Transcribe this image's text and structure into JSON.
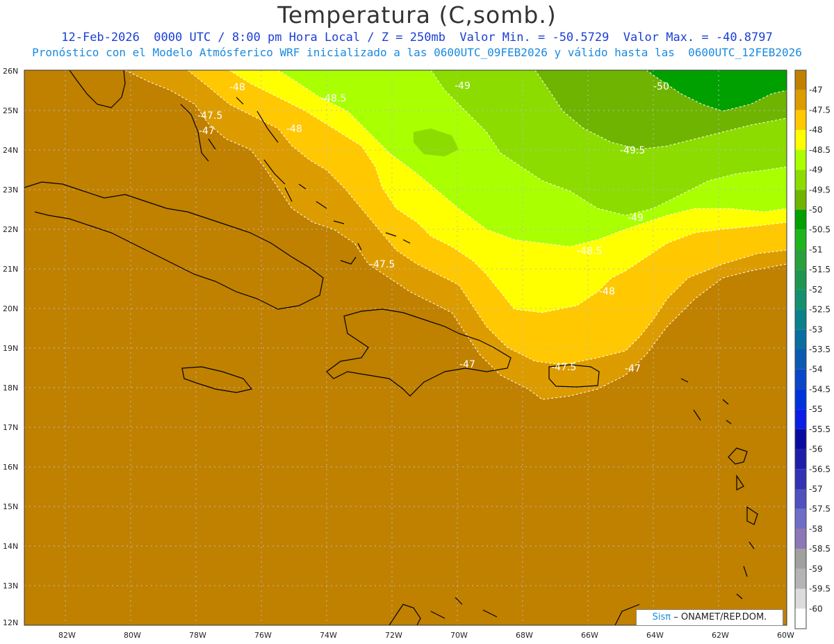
{
  "title": "Temperatura (C,somb.)",
  "subtitle1": "12-Feb-2026  0000 UTC / 8:00 pm Hora Local / Z = 250mb  Valor Min. = -50.5729  Valor Max. = -40.8797",
  "subtitle2": "Pronóstico con el Modelo Atmósferico WRF inicializado a las 0600UTC_09FEB2026 y válido hasta las  0600UTC_12FEB2026",
  "credit": {
    "brand": "Sisπ",
    "text": "– ONAMET/REP.DOM."
  },
  "axes": {
    "lon_labels": [
      "82W",
      "80W",
      "78W",
      "76W",
      "74W",
      "72W",
      "70W",
      "68W",
      "66W",
      "64W",
      "62W",
      "60W"
    ],
    "lat_labels": [
      "26N",
      "25N",
      "24N",
      "23N",
      "22N",
      "21N",
      "20N",
      "19N",
      "18N",
      "17N",
      "16N",
      "15N",
      "14N",
      "13N",
      "12N"
    ]
  },
  "colorbar": {
    "labels": [
      "-47",
      "-47.5",
      "-48",
      "-48.5",
      "-49",
      "-49.5",
      "-50",
      "-50.5",
      "-51",
      "-51.5",
      "-52",
      "-52.5",
      "-53",
      "-53.5",
      "-54",
      "-54.5",
      "-55",
      "-55.5",
      "-56",
      "-56.5",
      "-57",
      "-57.5",
      "-58",
      "-58.5",
      "-59",
      "-59.5",
      "-60"
    ],
    "colors": [
      "#c08000",
      "#dc9c00",
      "#ffc800",
      "#ffff00",
      "#aaff00",
      "#8cdc00",
      "#6eb400",
      "#00a000",
      "#1eb41e",
      "#28a03c",
      "#1e9650",
      "#14906e",
      "#0a828c",
      "#0a6ea0",
      "#0a5ab4",
      "#0a46c8",
      "#0032dc",
      "#0a1ee6",
      "#0a0aa0",
      "#1e1eaa",
      "#3232b4",
      "#5050be",
      "#6e6ec8",
      "#8c78b4",
      "#a0a0a0",
      "#b4b4b4",
      "#dcdcdc",
      "#ffffff"
    ]
  },
  "contour_labels": [
    "-48",
    "-48.5",
    "-49",
    "-50",
    "-47.5",
    "-47",
    "-48",
    "-49.5",
    "-49",
    "-48.5",
    "-47.5",
    "-48",
    "-47",
    "-47.5",
    "-47"
  ]
}
